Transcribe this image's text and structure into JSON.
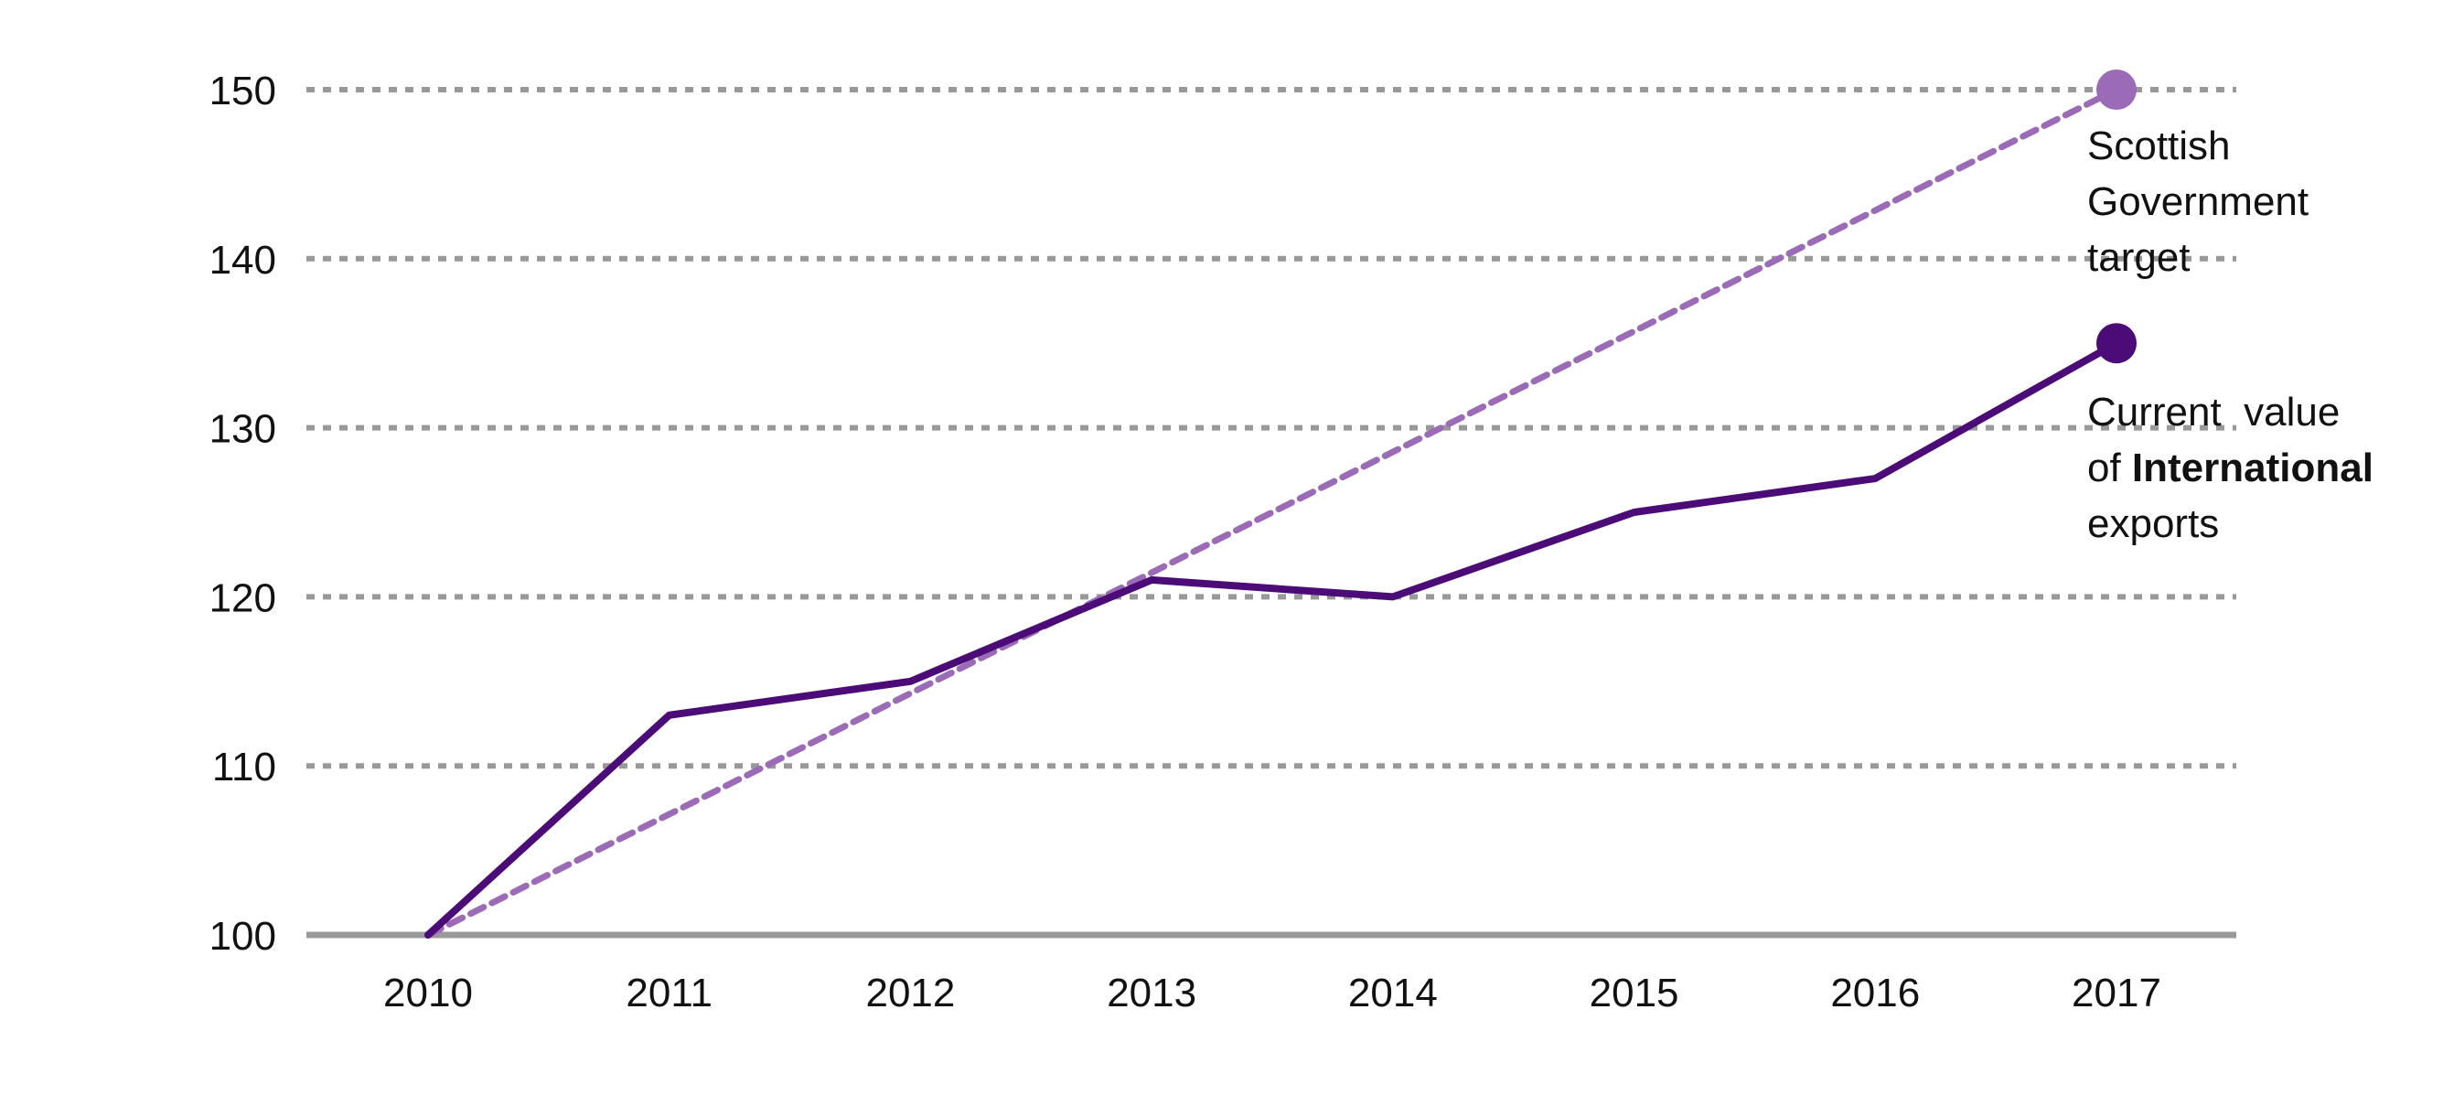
{
  "chart_data": {
    "type": "line",
    "title": "",
    "xlabel": "",
    "ylabel": "",
    "categories": [
      "2010",
      "2011",
      "2012",
      "2013",
      "2014",
      "2015",
      "2016",
      "2017"
    ],
    "ylim": [
      100,
      150
    ],
    "yticks": [
      100,
      110,
      120,
      130,
      140,
      150
    ],
    "grid": "horizontal-dotted",
    "series": [
      {
        "name": "Scottish Government target",
        "style": "dashed",
        "color": "#9b6bb8",
        "values": [
          100,
          107.14,
          114.29,
          121.43,
          128.57,
          135.71,
          142.86,
          150
        ]
      },
      {
        "name": "Current value of International exports",
        "style": "solid",
        "color": "#4b0c78",
        "values": [
          100,
          113,
          115,
          121,
          120,
          125,
          127,
          135
        ]
      }
    ],
    "annotations": {
      "target": {
        "line1": "Scottish",
        "line2": "Government",
        "line3": "target"
      },
      "current": {
        "line1": "Current  value",
        "line2_prefix": "of ",
        "line2_bold": "International",
        "line3": "exports"
      }
    },
    "colors": {
      "grid": "#999999",
      "axis": "#999999"
    }
  }
}
